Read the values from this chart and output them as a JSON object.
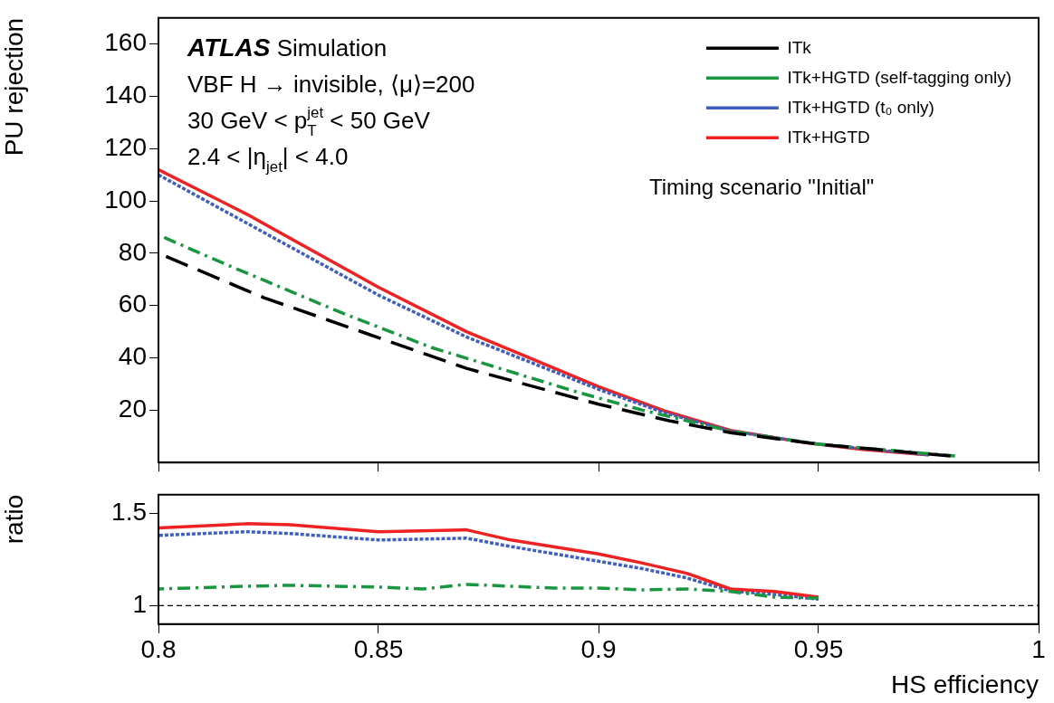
{
  "chart_data": [
    {
      "type": "line",
      "ylabel": "PU rejection",
      "xlim": [
        0.8,
        1
      ],
      "xticks": [
        0.8,
        0.85,
        0.9,
        0.95,
        1
      ],
      "ylim": [
        0,
        170
      ],
      "yticks": [
        20,
        40,
        60,
        80,
        100,
        120,
        140,
        160
      ],
      "tick_labels": "y",
      "legend": "top right",
      "marker": "none",
      "grid": false,
      "annotations": [
        "ATLAS Simulation",
        "VBF H → invisible, ⟨μ⟩=200",
        "30 GeV < p$_{T}$$^{jet}$ < 50 GeV",
        "2.4 < |η$_{jet}$| < 4.0",
        "Timing scenario \"Initial\""
      ],
      "series": [
        {
          "name": "ITk",
          "color": "#000000",
          "line_style": "dashed",
          "x": [
            0.8,
            0.824,
            0.87,
            0.9,
            0.916,
            0.93,
            0.95,
            0.98
          ],
          "values": [
            80,
            63,
            36,
            22.3,
            16,
            11.4,
            7,
            2.5
          ]
        },
        {
          "name": "ITk+HGTD (self-tagging only)",
          "color": "#1a9641",
          "line_style": "dashdot",
          "x": [
            0.8,
            0.815,
            0.842,
            0.862,
            0.895,
            0.91,
            0.93,
            0.95,
            0.981
          ],
          "values": [
            87,
            76,
            57,
            44,
            27,
            20,
            12,
            7,
            2.5
          ]
        },
        {
          "name": "ITk+HGTD (t₀ only)",
          "color": "#3f5fbf",
          "line_style": "dotted",
          "x": [
            0.8,
            0.85,
            0.87,
            0.882,
            0.9,
            0.915,
            0.93,
            0.95,
            0.975
          ],
          "values": [
            110,
            64,
            48,
            40,
            28,
            19,
            12,
            7,
            2.9
          ]
        },
        {
          "name": "ITk+HGTD",
          "color": "#ee2222",
          "line_style": "solid",
          "x": [
            0.8,
            0.82,
            0.85,
            0.87,
            0.882,
            0.9,
            0.915,
            0.93,
            0.947,
            0.96,
            0.975
          ],
          "values": [
            112,
            95,
            67,
            50,
            41.6,
            29,
            19.7,
            12.3,
            7.6,
            5,
            2.9
          ]
        }
      ]
    },
    {
      "type": "line",
      "ylabel": "ratio",
      "xlabel": "HS efficiency",
      "xlim": [
        0.8,
        1
      ],
      "xticks": [
        0.8,
        0.85,
        0.9,
        0.95,
        1
      ],
      "ylim": [
        0.9,
        1.6
      ],
      "yticks": [
        1,
        1.5
      ],
      "marker": "none",
      "grid": false,
      "legend": false,
      "ref_lines": [
        {
          "axis": "y",
          "value": 1,
          "color": "#000000",
          "line_style": "dashed"
        }
      ],
      "series": [
        {
          "color": "#1a9641",
          "line_style": "dashdot",
          "x": [
            0.8,
            0.82,
            0.83,
            0.85,
            0.86,
            0.87,
            0.88,
            0.89,
            0.9,
            0.91,
            0.92,
            0.93,
            0.94,
            0.95
          ],
          "values": [
            1.09,
            1.105,
            1.11,
            1.1,
            1.09,
            1.115,
            1.105,
            1.095,
            1.095,
            1.085,
            1.09,
            1.077,
            1.046,
            1.04
          ]
        },
        {
          "color": "#ee2222",
          "line_style": "solid",
          "x": [
            0.8,
            0.82,
            0.83,
            0.85,
            0.87,
            0.88,
            0.9,
            0.91,
            0.92,
            0.93,
            0.94,
            0.95
          ],
          "values": [
            1.42,
            1.443,
            1.437,
            1.4,
            1.41,
            1.355,
            1.28,
            1.23,
            1.175,
            1.09,
            1.077,
            1.046
          ]
        },
        {
          "color": "#3f5fbf",
          "line_style": "dotted",
          "x": [
            0.8,
            0.82,
            0.83,
            0.85,
            0.87,
            0.88,
            0.9,
            0.91,
            0.92,
            0.93,
            0.94,
            0.95
          ],
          "values": [
            1.38,
            1.4,
            1.39,
            1.355,
            1.365,
            1.32,
            1.24,
            1.2,
            1.15,
            1.08,
            1.06,
            1.035
          ]
        }
      ]
    }
  ]
}
